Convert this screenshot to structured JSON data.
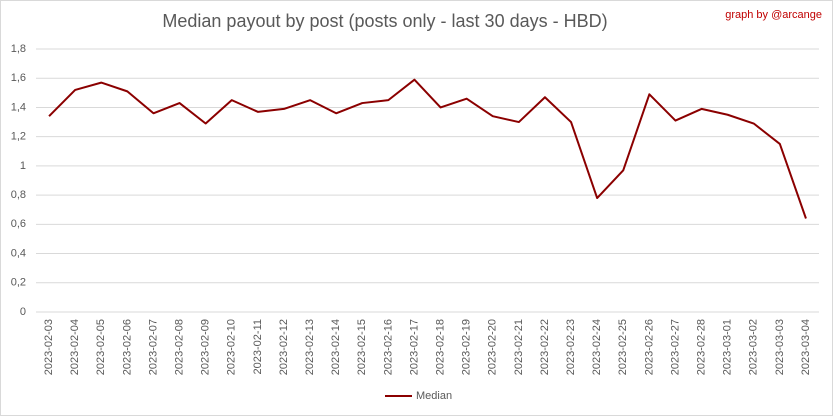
{
  "chart_data": {
    "type": "line",
    "title": "Median payout by post (posts only - last 30 days - HBD)",
    "annotation": "graph by @arcange",
    "categories": [
      "2023-02-03",
      "2023-02-04",
      "2023-02-05",
      "2023-02-06",
      "2023-02-07",
      "2023-02-08",
      "2023-02-09",
      "2023-02-10",
      "2023-02-11",
      "2023-02-12",
      "2023-02-13",
      "2023-02-14",
      "2023-02-15",
      "2023-02-16",
      "2023-02-17",
      "2023-02-18",
      "2023-02-19",
      "2023-02-20",
      "2023-02-21",
      "2023-02-22",
      "2023-02-23",
      "2023-02-24",
      "2023-02-25",
      "2023-02-26",
      "2023-02-27",
      "2023-02-28",
      "2023-03-01",
      "2023-03-02",
      "2023-03-03",
      "2023-03-04"
    ],
    "series": [
      {
        "name": "Median",
        "color": "#8b0000",
        "values": [
          1.34,
          1.52,
          1.57,
          1.51,
          1.36,
          1.43,
          1.29,
          1.45,
          1.37,
          1.39,
          1.45,
          1.36,
          1.43,
          1.45,
          1.59,
          1.4,
          1.46,
          1.34,
          1.3,
          1.47,
          1.3,
          0.78,
          0.97,
          1.49,
          1.31,
          1.39,
          1.35,
          1.29,
          1.15,
          0.64
        ]
      }
    ],
    "ylim": [
      0,
      1.8
    ],
    "yticks": [
      0,
      {
        "value": 0.2,
        "label": "0,2"
      },
      {
        "value": 0.4,
        "label": "0,4"
      },
      {
        "value": 0.6,
        "label": "0,6"
      },
      {
        "value": 0.8,
        "label": "0,8"
      },
      1,
      {
        "value": 1.2,
        "label": "1,2"
      },
      {
        "value": 1.4,
        "label": "1,4"
      },
      {
        "value": 1.6,
        "label": "1,6"
      },
      {
        "value": 1.8,
        "label": "1,8"
      }
    ],
    "grid": true,
    "legend": "bottom"
  }
}
